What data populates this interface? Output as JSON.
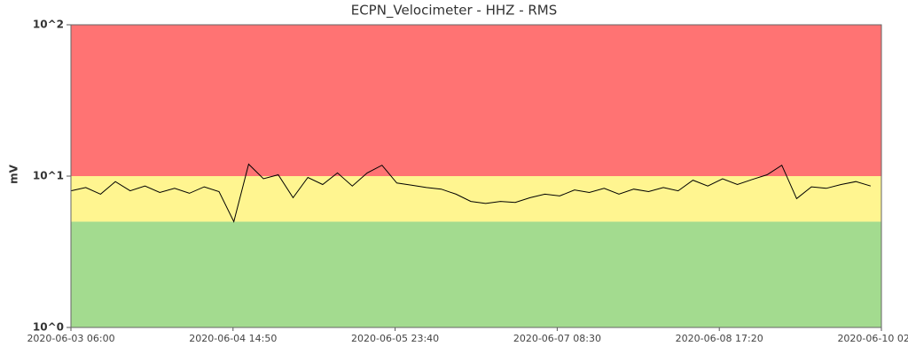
{
  "chart_data": {
    "type": "line",
    "title": "ECPN_Velocimeter - HHZ - RMS",
    "y_label": "mV",
    "log_scale": true,
    "ylim": [
      1,
      100
    ],
    "yticks": [
      {
        "value": 1,
        "label": "10^0"
      },
      {
        "value": 10,
        "label": "10^1"
      },
      {
        "value": 100,
        "label": "10^2"
      }
    ],
    "xlim": [
      "2020-06-03 06:00",
      "2020-06-10 02:10"
    ],
    "xticks": [
      "2020-06-03 06:00",
      "2020-06-04 14:50",
      "2020-06-05 23:40",
      "2020-06-07 08:30",
      "2020-06-08 17:20",
      "2020-06-10 02:10"
    ],
    "bands": [
      {
        "from": 1,
        "to": 5,
        "color": "#a3db8f"
      },
      {
        "from": 5,
        "to": 10,
        "color": "#fff590"
      },
      {
        "from": 10,
        "to": 100,
        "color": "#ff7373"
      }
    ],
    "x": [
      "2020-06-03 06:00",
      "2020-06-03 09:00",
      "2020-06-03 12:00",
      "2020-06-03 15:00",
      "2020-06-03 18:00",
      "2020-06-03 21:00",
      "2020-06-04 00:00",
      "2020-06-04 03:00",
      "2020-06-04 06:00",
      "2020-06-04 09:00",
      "2020-06-04 12:00",
      "2020-06-04 15:00",
      "2020-06-04 18:00",
      "2020-06-04 21:00",
      "2020-06-05 00:00",
      "2020-06-05 03:00",
      "2020-06-05 06:00",
      "2020-06-05 09:00",
      "2020-06-05 12:00",
      "2020-06-05 15:00",
      "2020-06-05 18:00",
      "2020-06-05 21:00",
      "2020-06-06 00:00",
      "2020-06-06 03:00",
      "2020-06-06 06:00",
      "2020-06-06 09:00",
      "2020-06-06 12:00",
      "2020-06-06 15:00",
      "2020-06-06 18:00",
      "2020-06-06 21:00",
      "2020-06-07 00:00",
      "2020-06-07 03:00",
      "2020-06-07 06:00",
      "2020-06-07 09:00",
      "2020-06-07 12:00",
      "2020-06-07 15:00",
      "2020-06-07 18:00",
      "2020-06-07 21:00",
      "2020-06-08 00:00",
      "2020-06-08 03:00",
      "2020-06-08 06:00",
      "2020-06-08 09:00",
      "2020-06-08 12:00",
      "2020-06-08 15:00",
      "2020-06-08 18:00",
      "2020-06-08 21:00",
      "2020-06-09 00:00",
      "2020-06-09 03:00",
      "2020-06-09 06:00",
      "2020-06-09 09:00",
      "2020-06-09 12:00",
      "2020-06-09 15:00",
      "2020-06-09 18:00",
      "2020-06-09 21:00",
      "2020-06-10 00:00"
    ],
    "series": [
      {
        "color": "#000000",
        "values": [
          8.0,
          8.4,
          7.6,
          9.2,
          8.0,
          8.6,
          7.8,
          8.3,
          7.7,
          8.5,
          7.9,
          5.0,
          12.0,
          9.6,
          10.2,
          7.2,
          9.8,
          8.8,
          10.5,
          8.6,
          10.5,
          11.8,
          9.0,
          8.7,
          8.4,
          8.2,
          7.6,
          6.8,
          6.6,
          6.8,
          6.7,
          7.2,
          7.6,
          7.4,
          8.1,
          7.8,
          8.3,
          7.6,
          8.2,
          7.9,
          8.4,
          8.0,
          9.4,
          8.6,
          9.6,
          8.8,
          9.5,
          10.2,
          11.8,
          7.1,
          8.5,
          8.3,
          8.8,
          9.2,
          8.6
        ]
      }
    ]
  }
}
